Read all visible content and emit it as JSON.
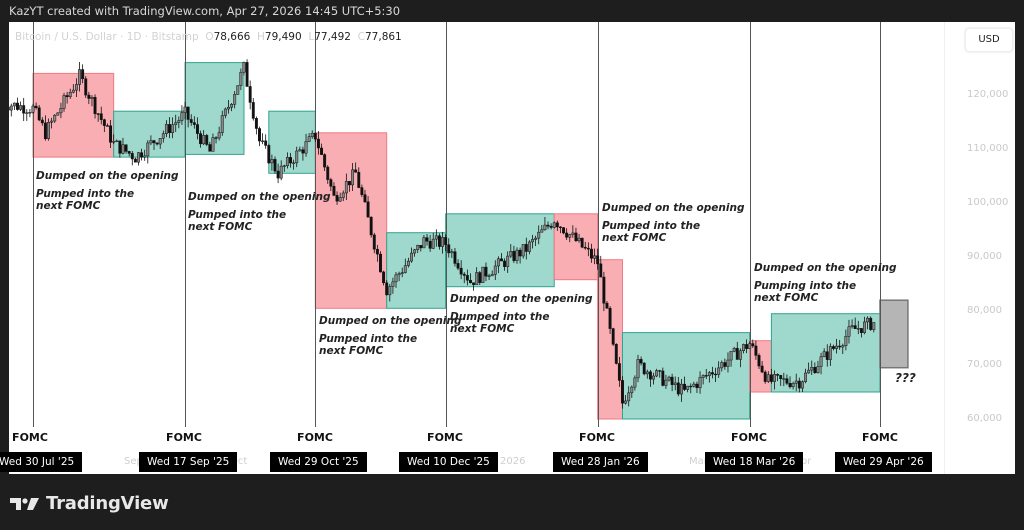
{
  "header": {
    "attribution": "KazYT created with TradingView.com, Apr 27, 2026 14:45 UTC+5:30"
  },
  "legend": {
    "symbol": "Bitcoin / U.S. Dollar · 1D · Bitstamp",
    "o_label": "O",
    "o_value": "78,666",
    "h_label": "H",
    "h_value": "79,490",
    "l_label": "L",
    "l_value": "77,492",
    "c_label": "C",
    "c_value": "77,861"
  },
  "price_axis": {
    "currency_button": "USD",
    "ticks": [
      "120,000",
      "110,000",
      "100,000",
      "90,000",
      "80,000",
      "70,000",
      "60,000"
    ]
  },
  "time_axis": {
    "month_labels": [
      "Sep",
      "Oct",
      "2026",
      "Mar",
      "Apr"
    ],
    "fomc_label": "FOMC",
    "fomc_dates": [
      "Wed 30 Jul '25",
      "Wed 17 Sep '25",
      "Wed 29 Oct '25",
      "Wed 10 Dec '25",
      "Wed 28 Jan '26",
      "Wed 18 Mar '26",
      "Wed 29 Apr '26"
    ]
  },
  "annotations": [
    {
      "line1": "Dumped on the opening",
      "line2": "Pumped into the\nnext FOMC"
    },
    {
      "line1": "Dumped on the opening",
      "line2": "Pumped into the\nnext FOMC"
    },
    {
      "line1": "Dumped on the opening",
      "line2": "Pumped into the\nnext FOMC"
    },
    {
      "line1": "Dumped on the opening",
      "line2": "Dumped into the\nnext FOMC"
    },
    {
      "line1": "Dumped on the opening",
      "line2": "Pumped into the\nnext FOMC"
    },
    {
      "line1": "Dumped on the opening",
      "line2": "Pumping into the\nnext FOMC"
    }
  ],
  "future_label": "???",
  "branding": {
    "logo_text": "TradingView"
  },
  "colors": {
    "dump_fill": "#f8aeb3",
    "dump_border": "#ef7a83",
    "pump_fill": "#9fd8cc",
    "pump_border": "#2fa58f",
    "future_fill": "#b5b5b5",
    "future_border": "#777777"
  },
  "chart_data": {
    "type": "candlestick",
    "title": "Bitcoin / U.S. Dollar · 1D · Bitstamp",
    "ylabel": "USD",
    "ylim": [
      57000,
      128000
    ],
    "y_ticks": [
      60000,
      70000,
      80000,
      90000,
      100000,
      110000,
      120000
    ],
    "ohlc_last": {
      "open": 78666,
      "high": 79490,
      "low": 77492,
      "close": 77861
    },
    "fomc_events": [
      "2025-07-30",
      "2025-09-17",
      "2025-10-29",
      "2025-12-10",
      "2026-01-28",
      "2026-03-18",
      "2026-04-29"
    ],
    "price_path": [
      {
        "date": "2025-07-20",
        "close": 118500
      },
      {
        "date": "2025-07-30",
        "close": 117500
      },
      {
        "date": "2025-08-03",
        "close": 113000
      },
      {
        "date": "2025-08-14",
        "close": 123500
      },
      {
        "date": "2025-08-25",
        "close": 111000
      },
      {
        "date": "2025-09-01",
        "close": 108500
      },
      {
        "date": "2025-09-17",
        "close": 116500
      },
      {
        "date": "2025-09-25",
        "close": 109500
      },
      {
        "date": "2025-10-06",
        "close": 125000
      },
      {
        "date": "2025-10-11",
        "close": 111500
      },
      {
        "date": "2025-10-17",
        "close": 105500
      },
      {
        "date": "2025-10-29",
        "close": 112500
      },
      {
        "date": "2025-11-04",
        "close": 101000
      },
      {
        "date": "2025-11-11",
        "close": 105500
      },
      {
        "date": "2025-11-21",
        "close": 84000
      },
      {
        "date": "2025-12-03",
        "close": 93000
      },
      {
        "date": "2025-12-10",
        "close": 92500
      },
      {
        "date": "2025-12-18",
        "close": 85500
      },
      {
        "date": "2026-01-05",
        "close": 91500
      },
      {
        "date": "2026-01-14",
        "close": 97000
      },
      {
        "date": "2026-01-28",
        "close": 89000
      },
      {
        "date": "2026-02-05",
        "close": 63000
      },
      {
        "date": "2026-02-10",
        "close": 70000
      },
      {
        "date": "2026-02-25",
        "close": 65000
      },
      {
        "date": "2026-03-18",
        "close": 74000
      },
      {
        "date": "2026-03-24",
        "close": 67000
      },
      {
        "date": "2026-04-03",
        "close": 67000
      },
      {
        "date": "2026-04-20",
        "close": 76500
      },
      {
        "date": "2026-04-27",
        "close": 77861
      }
    ],
    "boxes": [
      {
        "type": "dump",
        "from": "2025-07-30",
        "to": "2025-08-25",
        "high": 124000,
        "low": 108500
      },
      {
        "type": "pump",
        "from": "2025-08-25",
        "to": "2025-09-17",
        "high": 117000,
        "low": 108500
      },
      {
        "type": "pump",
        "from": "2025-09-17",
        "to": "2025-10-06",
        "high": 126000,
        "low": 109000
      },
      {
        "type": "pump",
        "from": "2025-10-14",
        "to": "2025-10-29",
        "high": 117000,
        "low": 105500
      },
      {
        "type": "dump",
        "from": "2025-10-29",
        "to": "2025-11-21",
        "high": 113000,
        "low": 80500
      },
      {
        "type": "pump",
        "from": "2025-11-21",
        "to": "2025-12-10",
        "high": 94500,
        "low": 80500
      },
      {
        "type": "pump",
        "from": "2025-12-10",
        "to": "2026-01-14",
        "high": 98000,
        "low": 84500
      },
      {
        "type": "dump",
        "from": "2026-01-14",
        "to": "2026-01-28",
        "high": 98000,
        "low": 85800
      },
      {
        "type": "dump",
        "from": "2026-01-28",
        "to": "2026-02-05",
        "high": 89500,
        "low": 60000
      },
      {
        "type": "pump",
        "from": "2026-02-05",
        "to": "2026-03-18",
        "high": 76000,
        "low": 60000
      },
      {
        "type": "dump",
        "from": "2026-03-18",
        "to": "2026-03-25",
        "high": 74500,
        "low": 65000
      },
      {
        "type": "pump",
        "from": "2026-03-25",
        "to": "2026-04-29",
        "high": 79500,
        "low": 65000
      },
      {
        "type": "future",
        "from": "2026-04-29",
        "to": "2026-05-08",
        "high": 82000,
        "low": 69500,
        "label": "???"
      }
    ],
    "grid": false
  }
}
